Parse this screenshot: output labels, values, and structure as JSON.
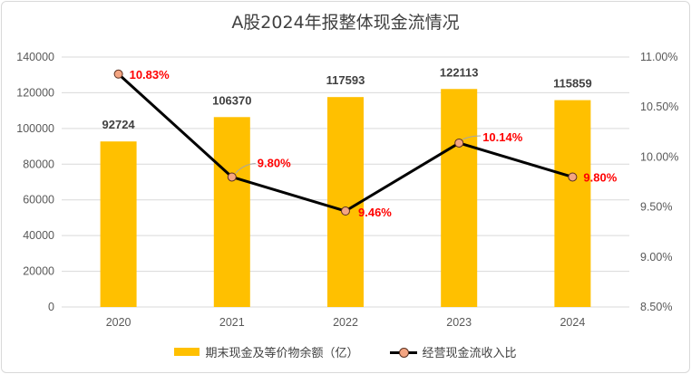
{
  "chart_data": {
    "type": "bar",
    "title": "A股2024年报整体现金流情况",
    "categories": [
      "2020",
      "2021",
      "2022",
      "2023",
      "2024"
    ],
    "series": [
      {
        "name": "期末现金及等价物余额（亿）",
        "type": "bar",
        "axis": "left",
        "values": [
          92724,
          106370,
          117593,
          122113,
          115859
        ],
        "color": "#ffc000"
      },
      {
        "name": "经营现金流收入比",
        "type": "line",
        "axis": "right",
        "values": [
          10.83,
          9.8,
          9.46,
          10.14,
          9.8
        ],
        "labels": [
          "10.83%",
          "9.80%",
          "9.46%",
          "10.14%",
          "9.80%"
        ],
        "color": "#000000",
        "marker_color": "#f4a582"
      }
    ],
    "y_left": {
      "ylim": [
        0,
        140000
      ],
      "ticks": [
        "0",
        "20000",
        "40000",
        "60000",
        "80000",
        "100000",
        "120000",
        "140000"
      ]
    },
    "y_right": {
      "ylim": [
        8.5,
        11.0
      ],
      "ticks": [
        "8.50%",
        "9.00%",
        "9.50%",
        "10.00%",
        "10.50%",
        "11.00%"
      ]
    },
    "grid": true,
    "legend_position": "bottom"
  }
}
